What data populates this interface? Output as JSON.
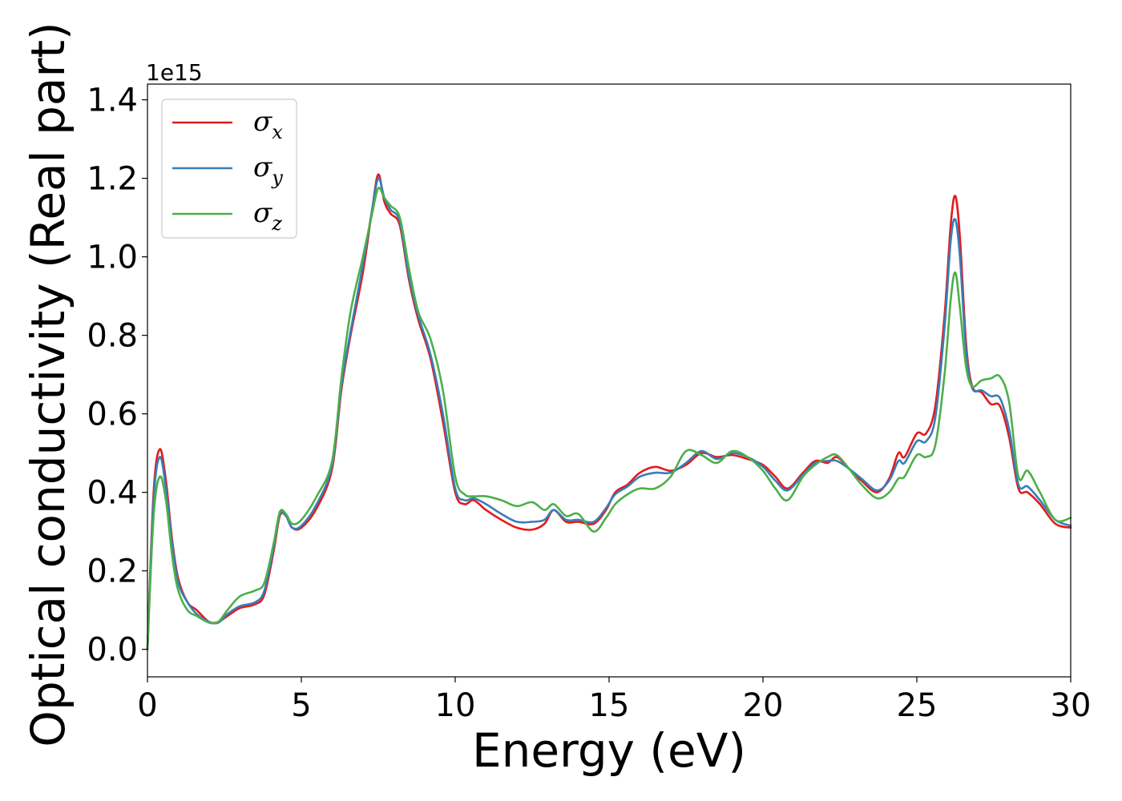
{
  "chart_data": {
    "type": "line",
    "title": "",
    "xlabel": "Energy (eV)",
    "ylabel": "Optical conductivity (Real part)",
    "y_offset_label": "1e15",
    "y_scale": 1000000000000000.0,
    "xlim": [
      0,
      30
    ],
    "ylim": [
      -0.07,
      1.44
    ],
    "x_ticks": [
      0,
      5,
      10,
      15,
      20,
      25,
      30
    ],
    "x_tick_labels": [
      "0",
      "5",
      "10",
      "15",
      "20",
      "25",
      "30"
    ],
    "y_ticks": [
      0.0,
      0.2,
      0.4,
      0.6,
      0.8,
      1.0,
      1.2,
      1.4
    ],
    "y_tick_labels": [
      "0.0",
      "0.2",
      "0.4",
      "0.6",
      "0.8",
      "1.0",
      "1.2",
      "1.4"
    ],
    "grid": false,
    "legend": {
      "placement": "top-left"
    },
    "series": [
      {
        "name": "σx",
        "legend_symbol": "σ",
        "legend_sub": "x",
        "color": "#e41a1c",
        "points": [
          [
            0.0,
            0.0
          ],
          [
            0.2,
            0.4
          ],
          [
            0.4,
            0.51
          ],
          [
            0.6,
            0.43
          ],
          [
            0.8,
            0.28
          ],
          [
            1.0,
            0.18
          ],
          [
            1.3,
            0.12
          ],
          [
            1.6,
            0.1
          ],
          [
            2.0,
            0.07
          ],
          [
            2.3,
            0.07
          ],
          [
            2.6,
            0.085
          ],
          [
            3.0,
            0.105
          ],
          [
            3.5,
            0.115
          ],
          [
            3.8,
            0.14
          ],
          [
            4.1,
            0.25
          ],
          [
            4.3,
            0.34
          ],
          [
            4.5,
            0.34
          ],
          [
            4.7,
            0.31
          ],
          [
            5.0,
            0.31
          ],
          [
            5.5,
            0.36
          ],
          [
            6.0,
            0.46
          ],
          [
            6.3,
            0.66
          ],
          [
            6.6,
            0.8
          ],
          [
            7.0,
            0.96
          ],
          [
            7.3,
            1.12
          ],
          [
            7.5,
            1.21
          ],
          [
            7.7,
            1.14
          ],
          [
            7.9,
            1.11
          ],
          [
            8.2,
            1.08
          ],
          [
            8.5,
            0.94
          ],
          [
            8.8,
            0.84
          ],
          [
            9.2,
            0.74
          ],
          [
            9.6,
            0.58
          ],
          [
            10.0,
            0.4
          ],
          [
            10.3,
            0.37
          ],
          [
            10.6,
            0.38
          ],
          [
            11.0,
            0.355
          ],
          [
            11.5,
            0.33
          ],
          [
            12.0,
            0.31
          ],
          [
            12.5,
            0.305
          ],
          [
            12.9,
            0.32
          ],
          [
            13.2,
            0.355
          ],
          [
            13.6,
            0.325
          ],
          [
            14.0,
            0.325
          ],
          [
            14.5,
            0.32
          ],
          [
            14.9,
            0.355
          ],
          [
            15.2,
            0.4
          ],
          [
            15.6,
            0.42
          ],
          [
            16.0,
            0.45
          ],
          [
            16.5,
            0.465
          ],
          [
            17.0,
            0.455
          ],
          [
            17.5,
            0.47
          ],
          [
            18.0,
            0.5
          ],
          [
            18.5,
            0.49
          ],
          [
            19.0,
            0.495
          ],
          [
            19.5,
            0.485
          ],
          [
            20.0,
            0.47
          ],
          [
            20.4,
            0.44
          ],
          [
            20.8,
            0.41
          ],
          [
            21.3,
            0.45
          ],
          [
            21.7,
            0.48
          ],
          [
            22.1,
            0.475
          ],
          [
            22.4,
            0.49
          ],
          [
            22.8,
            0.46
          ],
          [
            23.2,
            0.43
          ],
          [
            23.7,
            0.4
          ],
          [
            24.1,
            0.435
          ],
          [
            24.4,
            0.5
          ],
          [
            24.6,
            0.49
          ],
          [
            25.0,
            0.55
          ],
          [
            25.3,
            0.55
          ],
          [
            25.6,
            0.62
          ],
          [
            25.9,
            0.85
          ],
          [
            26.1,
            1.08
          ],
          [
            26.25,
            1.155
          ],
          [
            26.4,
            1.05
          ],
          [
            26.6,
            0.78
          ],
          [
            26.8,
            0.67
          ],
          [
            27.1,
            0.655
          ],
          [
            27.4,
            0.625
          ],
          [
            27.7,
            0.62
          ],
          [
            28.0,
            0.54
          ],
          [
            28.3,
            0.41
          ],
          [
            28.6,
            0.4
          ],
          [
            29.0,
            0.37
          ],
          [
            29.5,
            0.32
          ],
          [
            30.0,
            0.31
          ]
        ]
      },
      {
        "name": "σy",
        "legend_symbol": "σ",
        "legend_sub": "y",
        "color": "#377eb8",
        "points": [
          [
            0.0,
            0.0
          ],
          [
            0.2,
            0.38
          ],
          [
            0.4,
            0.49
          ],
          [
            0.6,
            0.41
          ],
          [
            0.8,
            0.27
          ],
          [
            1.0,
            0.17
          ],
          [
            1.3,
            0.12
          ],
          [
            1.6,
            0.09
          ],
          [
            2.0,
            0.07
          ],
          [
            2.3,
            0.068
          ],
          [
            2.6,
            0.09
          ],
          [
            3.0,
            0.11
          ],
          [
            3.5,
            0.12
          ],
          [
            3.8,
            0.15
          ],
          [
            4.1,
            0.26
          ],
          [
            4.3,
            0.345
          ],
          [
            4.5,
            0.34
          ],
          [
            4.7,
            0.31
          ],
          [
            5.0,
            0.315
          ],
          [
            5.5,
            0.37
          ],
          [
            6.0,
            0.47
          ],
          [
            6.3,
            0.67
          ],
          [
            6.6,
            0.81
          ],
          [
            7.0,
            0.98
          ],
          [
            7.3,
            1.12
          ],
          [
            7.5,
            1.2
          ],
          [
            7.7,
            1.15
          ],
          [
            7.9,
            1.12
          ],
          [
            8.2,
            1.09
          ],
          [
            8.5,
            0.95
          ],
          [
            8.8,
            0.85
          ],
          [
            9.2,
            0.75
          ],
          [
            9.6,
            0.6
          ],
          [
            10.0,
            0.41
          ],
          [
            10.3,
            0.38
          ],
          [
            10.6,
            0.385
          ],
          [
            11.0,
            0.37
          ],
          [
            11.5,
            0.345
          ],
          [
            12.0,
            0.325
          ],
          [
            12.5,
            0.325
          ],
          [
            12.9,
            0.33
          ],
          [
            13.2,
            0.355
          ],
          [
            13.6,
            0.33
          ],
          [
            14.0,
            0.33
          ],
          [
            14.5,
            0.325
          ],
          [
            14.9,
            0.36
          ],
          [
            15.2,
            0.395
          ],
          [
            15.6,
            0.415
          ],
          [
            16.0,
            0.44
          ],
          [
            16.5,
            0.45
          ],
          [
            17.0,
            0.45
          ],
          [
            17.5,
            0.475
          ],
          [
            18.0,
            0.505
          ],
          [
            18.5,
            0.485
          ],
          [
            19.0,
            0.5
          ],
          [
            19.5,
            0.49
          ],
          [
            20.0,
            0.465
          ],
          [
            20.4,
            0.43
          ],
          [
            20.8,
            0.405
          ],
          [
            21.3,
            0.445
          ],
          [
            21.7,
            0.475
          ],
          [
            22.1,
            0.48
          ],
          [
            22.4,
            0.48
          ],
          [
            22.8,
            0.46
          ],
          [
            23.2,
            0.435
          ],
          [
            23.7,
            0.405
          ],
          [
            24.1,
            0.43
          ],
          [
            24.4,
            0.48
          ],
          [
            24.6,
            0.475
          ],
          [
            25.0,
            0.53
          ],
          [
            25.3,
            0.53
          ],
          [
            25.6,
            0.59
          ],
          [
            25.9,
            0.82
          ],
          [
            26.1,
            1.04
          ],
          [
            26.25,
            1.095
          ],
          [
            26.4,
            1.0
          ],
          [
            26.6,
            0.76
          ],
          [
            26.8,
            0.665
          ],
          [
            27.1,
            0.66
          ],
          [
            27.4,
            0.645
          ],
          [
            27.7,
            0.64
          ],
          [
            28.0,
            0.56
          ],
          [
            28.3,
            0.42
          ],
          [
            28.6,
            0.415
          ],
          [
            29.0,
            0.38
          ],
          [
            29.5,
            0.33
          ],
          [
            30.0,
            0.315
          ]
        ]
      },
      {
        "name": "σz",
        "legend_symbol": "σ",
        "legend_sub": "z",
        "color": "#4daf4a",
        "points": [
          [
            0.0,
            0.0
          ],
          [
            0.2,
            0.34
          ],
          [
            0.4,
            0.44
          ],
          [
            0.6,
            0.38
          ],
          [
            0.8,
            0.24
          ],
          [
            1.0,
            0.15
          ],
          [
            1.3,
            0.1
          ],
          [
            1.6,
            0.085
          ],
          [
            2.0,
            0.068
          ],
          [
            2.3,
            0.07
          ],
          [
            2.6,
            0.1
          ],
          [
            3.0,
            0.135
          ],
          [
            3.5,
            0.15
          ],
          [
            3.8,
            0.17
          ],
          [
            4.1,
            0.27
          ],
          [
            4.3,
            0.35
          ],
          [
            4.5,
            0.345
          ],
          [
            4.7,
            0.32
          ],
          [
            5.0,
            0.33
          ],
          [
            5.5,
            0.39
          ],
          [
            6.0,
            0.48
          ],
          [
            6.3,
            0.69
          ],
          [
            6.6,
            0.86
          ],
          [
            7.0,
            1.0
          ],
          [
            7.3,
            1.11
          ],
          [
            7.5,
            1.175
          ],
          [
            7.7,
            1.15
          ],
          [
            7.9,
            1.13
          ],
          [
            8.2,
            1.1
          ],
          [
            8.5,
            0.97
          ],
          [
            8.8,
            0.86
          ],
          [
            9.2,
            0.79
          ],
          [
            9.6,
            0.66
          ],
          [
            10.0,
            0.44
          ],
          [
            10.3,
            0.395
          ],
          [
            10.6,
            0.39
          ],
          [
            11.0,
            0.39
          ],
          [
            11.5,
            0.38
          ],
          [
            12.0,
            0.365
          ],
          [
            12.5,
            0.375
          ],
          [
            12.9,
            0.355
          ],
          [
            13.2,
            0.37
          ],
          [
            13.6,
            0.34
          ],
          [
            14.0,
            0.345
          ],
          [
            14.5,
            0.3
          ],
          [
            14.9,
            0.335
          ],
          [
            15.2,
            0.37
          ],
          [
            15.6,
            0.395
          ],
          [
            16.0,
            0.41
          ],
          [
            16.5,
            0.41
          ],
          [
            17.0,
            0.44
          ],
          [
            17.5,
            0.505
          ],
          [
            18.0,
            0.495
          ],
          [
            18.5,
            0.475
          ],
          [
            19.0,
            0.505
          ],
          [
            19.5,
            0.49
          ],
          [
            20.0,
            0.455
          ],
          [
            20.4,
            0.41
          ],
          [
            20.8,
            0.38
          ],
          [
            21.3,
            0.44
          ],
          [
            21.7,
            0.47
          ],
          [
            22.1,
            0.49
          ],
          [
            22.4,
            0.495
          ],
          [
            22.8,
            0.46
          ],
          [
            23.2,
            0.42
          ],
          [
            23.7,
            0.385
          ],
          [
            24.1,
            0.4
          ],
          [
            24.4,
            0.435
          ],
          [
            24.6,
            0.44
          ],
          [
            25.0,
            0.495
          ],
          [
            25.3,
            0.49
          ],
          [
            25.6,
            0.52
          ],
          [
            25.9,
            0.7
          ],
          [
            26.1,
            0.89
          ],
          [
            26.25,
            0.96
          ],
          [
            26.4,
            0.87
          ],
          [
            26.6,
            0.72
          ],
          [
            26.8,
            0.67
          ],
          [
            27.1,
            0.685
          ],
          [
            27.4,
            0.69
          ],
          [
            27.7,
            0.695
          ],
          [
            28.0,
            0.63
          ],
          [
            28.3,
            0.44
          ],
          [
            28.6,
            0.455
          ],
          [
            29.0,
            0.4
          ],
          [
            29.5,
            0.33
          ],
          [
            30.0,
            0.335
          ]
        ]
      }
    ]
  }
}
